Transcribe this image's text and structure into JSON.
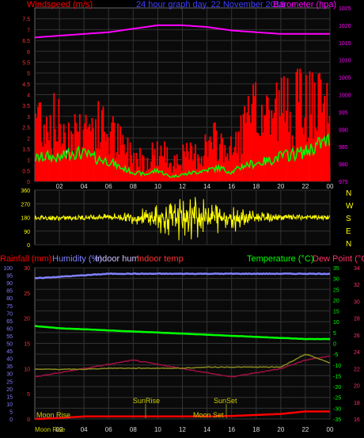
{
  "header": {
    "windspeed_label": "Windspeed (m/s)",
    "graph_title": "24 hour graph day,  22 November 2018",
    "barometer_label": "Barometer (hpa)"
  },
  "legend_bottom": {
    "rainfall": "Rainfall (mm)",
    "humidity": "Humidity (%)",
    "indoor_hum": "Indoor hum",
    "indoor_temp": "Indoor temp",
    "temperature": "Temperature (°C)",
    "dew_point": "Dew Point (°C)"
  },
  "annotations": {
    "sunrise": "SunRise",
    "sunset": "SunSet",
    "moonrise": "Moon Rise",
    "moonset": "Moon Set"
  },
  "direction_letters": [
    "N",
    "W",
    "S",
    "E",
    "N"
  ],
  "hour_labels": [
    "02",
    "04",
    "06",
    "08",
    "10",
    "12",
    "14",
    "16",
    "18",
    "20",
    "22",
    "00"
  ],
  "colors": {
    "wind_avg_red": "#ff0000",
    "gust_green": "#00ff00",
    "white_bars": "#d8f0d8",
    "barometer": "#ff00ff",
    "direction": "#ffff00",
    "rainfall": "#ff0000",
    "humidity": "#8080ff",
    "indoor_hum": "#9f8fc0",
    "indoor_temp": "#a01040",
    "temperature": "#00ff00",
    "dew_point": "#ff3366",
    "olive": "#8a8a20"
  },
  "chart_data": [
    {
      "type": "bar",
      "name_panel": "wind",
      "ylabel": "Windspeed (m/s)",
      "ylim": [
        0,
        8
      ],
      "y_ticks": [
        "0",
        "0.5",
        "1",
        "1.5",
        "2",
        "2.5",
        "3",
        "3.5",
        "4",
        "4.5",
        "5",
        "5.5",
        "6",
        "6.5",
        "7",
        "7.5"
      ],
      "y2label": "Barometer (hpa)",
      "y2lim": [
        975,
        1025
      ],
      "y2_ticks": [
        "975",
        "980",
        "985",
        "990",
        "995",
        "1000",
        "1005",
        "1010",
        "1015",
        "1020",
        "1025"
      ],
      "x_hours_start": 0,
      "x_hours_end": 24,
      "series": [
        {
          "name": "Windspeed",
          "x": [
            0,
            1,
            2,
            3,
            4,
            5,
            6,
            7,
            8,
            9,
            10,
            11,
            12,
            13,
            14,
            15,
            16,
            17,
            18,
            19,
            20,
            21,
            22,
            23,
            24
          ],
          "values": [
            3.2,
            2.8,
            2.5,
            2.2,
            2.6,
            2.4,
            2.3,
            1.6,
            1.2,
            1.0,
            1.4,
            1.0,
            1.1,
            1.2,
            1.6,
            1.8,
            1.3,
            2.4,
            3.0,
            3.2,
            3.3,
            3.4,
            3.6,
            3.2,
            3.0
          ]
        },
        {
          "name": "Gust",
          "x": [
            0,
            1,
            2,
            3,
            4,
            5,
            6,
            7,
            8,
            9,
            10,
            11,
            12,
            13,
            14,
            15,
            16,
            17,
            18,
            19,
            20,
            21,
            22,
            23,
            24
          ],
          "values": [
            1.0,
            1.1,
            1.0,
            1.3,
            1.2,
            1.0,
            0.9,
            0.6,
            0.4,
            0.3,
            0.5,
            0.2,
            0.3,
            0.4,
            0.5,
            0.6,
            0.4,
            0.7,
            0.8,
            0.9,
            1.1,
            1.2,
            1.3,
            1.6,
            1.8
          ]
        },
        {
          "name": "Barometer",
          "x": [
            0,
            2,
            4,
            6,
            8,
            10,
            12,
            14,
            16,
            18,
            20,
            22,
            24
          ],
          "values": [
            1016.5,
            1017,
            1017.5,
            1018,
            1019,
            1020,
            1020,
            1019.5,
            1018.5,
            1018,
            1017.5,
            1017.5,
            1017.5
          ]
        }
      ]
    },
    {
      "type": "scatter",
      "name_panel": "wind_direction",
      "ylim": [
        0,
        360
      ],
      "y_ticks": [
        "0",
        "90",
        "180",
        "270",
        "360"
      ],
      "series": [
        {
          "name": "Direction",
          "x": [
            0,
            2,
            4,
            6,
            8,
            10,
            12,
            14,
            16,
            18,
            20,
            22,
            24
          ],
          "values": [
            180,
            175,
            180,
            185,
            180,
            175,
            180,
            185,
            180,
            180,
            180,
            180,
            180
          ]
        }
      ]
    },
    {
      "type": "line",
      "name_panel": "temperature_humidity",
      "y_left_ticks": [
        "0",
        "5",
        "10",
        "15",
        "20",
        "25",
        "30",
        "35",
        "40",
        "45",
        "50",
        "55",
        "60",
        "65",
        "70",
        "75",
        "80",
        "85",
        "90",
        "95",
        "100"
      ],
      "ylim_humidity": [
        0,
        100
      ],
      "y_rain_ticks": [
        "0",
        "5",
        "10",
        "15",
        "20",
        "25",
        "30"
      ],
      "ylim_rain": [
        0,
        30
      ],
      "y_temp_ticks": [
        "-35",
        "-30",
        "-25",
        "-20",
        "-15",
        "-10",
        "-5",
        "0",
        "5",
        "10",
        "15",
        "20",
        "25",
        "30",
        "35"
      ],
      "ylim_temp": [
        -35,
        35
      ],
      "y_dew_ticks": [
        "16",
        "18",
        "20",
        "22",
        "24",
        "26",
        "28",
        "30",
        "32",
        "34"
      ],
      "ylim_dew": [
        16,
        34
      ],
      "series": [
        {
          "name": "Humidity",
          "x": [
            0,
            2,
            4,
            6,
            8,
            10,
            12,
            14,
            16,
            18,
            20,
            22,
            24
          ],
          "values": [
            93,
            94,
            95,
            96,
            96,
            96,
            96,
            96,
            96,
            96,
            96,
            96,
            96
          ]
        },
        {
          "name": "Temperature",
          "x": [
            0,
            2,
            4,
            6,
            8,
            10,
            12,
            14,
            16,
            18,
            20,
            22,
            24
          ],
          "values": [
            8,
            7,
            6.5,
            6,
            5.5,
            5,
            4.5,
            4,
            3.5,
            3,
            2.5,
            2,
            2
          ]
        },
        {
          "name": "Indoor temp",
          "x": [
            0,
            2,
            4,
            6,
            8,
            10,
            12,
            14,
            16,
            18,
            20,
            22,
            24
          ],
          "values": [
            21,
            21.5,
            22,
            22.5,
            23,
            22.5,
            22,
            21.5,
            21,
            21.5,
            22,
            23,
            23.5
          ]
        },
        {
          "name": "Rainfall",
          "x": [
            0,
            2,
            4,
            6,
            8,
            10,
            12,
            14,
            16,
            18,
            20,
            22,
            24
          ],
          "values": [
            0,
            0.2,
            0.5,
            0.5,
            0.5,
            0.5,
            0.5,
            0.5,
            0.6,
            0.8,
            1.0,
            1.5,
            1.5
          ]
        },
        {
          "name": "Olive",
          "x": [
            0,
            2,
            4,
            6,
            8,
            10,
            12,
            14,
            16,
            18,
            20,
            22,
            24
          ],
          "values": [
            -12,
            -12,
            -12,
            -11.5,
            -11.5,
            -11.5,
            -11.5,
            -11,
            -11,
            -11,
            -11,
            -5,
            -9
          ]
        }
      ]
    }
  ]
}
